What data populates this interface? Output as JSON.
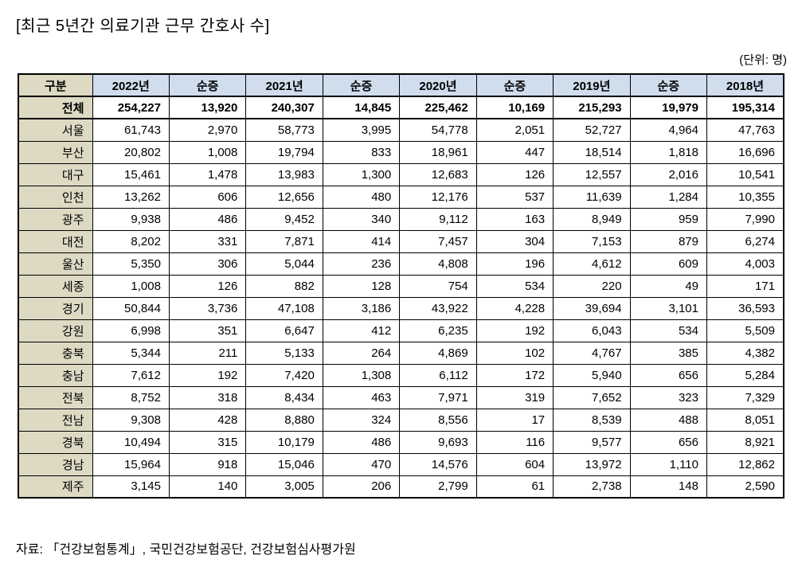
{
  "page": {
    "title": "[최근 5년간 의료기관 근무 간호사 수]",
    "unit_note": "(단위: 명)",
    "source": "자료: 「건강보험통계」, 국민건강보험공단, 건강보험심사평가원"
  },
  "colors": {
    "label_column_bg": "#DDD9C3",
    "year_header_bg": "#CFDDED",
    "border": "#000000"
  },
  "table": {
    "headers": [
      "구분",
      "2022년",
      "순증",
      "2021년",
      "순증",
      "2020년",
      "순증",
      "2019년",
      "순증",
      "2018년"
    ],
    "total_row": {
      "label": "전체",
      "values": [
        "254,227",
        "13,920",
        "240,307",
        "14,845",
        "225,462",
        "10,169",
        "215,293",
        "19,979",
        "195,314"
      ]
    },
    "rows": [
      {
        "label": "서울",
        "values": [
          "61,743",
          "2,970",
          "58,773",
          "3,995",
          "54,778",
          "2,051",
          "52,727",
          "4,964",
          "47,763"
        ]
      },
      {
        "label": "부산",
        "values": [
          "20,802",
          "1,008",
          "19,794",
          "833",
          "18,961",
          "447",
          "18,514",
          "1,818",
          "16,696"
        ]
      },
      {
        "label": "대구",
        "values": [
          "15,461",
          "1,478",
          "13,983",
          "1,300",
          "12,683",
          "126",
          "12,557",
          "2,016",
          "10,541"
        ]
      },
      {
        "label": "인천",
        "values": [
          "13,262",
          "606",
          "12,656",
          "480",
          "12,176",
          "537",
          "11,639",
          "1,284",
          "10,355"
        ]
      },
      {
        "label": "광주",
        "values": [
          "9,938",
          "486",
          "9,452",
          "340",
          "9,112",
          "163",
          "8,949",
          "959",
          "7,990"
        ]
      },
      {
        "label": "대전",
        "values": [
          "8,202",
          "331",
          "7,871",
          "414",
          "7,457",
          "304",
          "7,153",
          "879",
          "6,274"
        ]
      },
      {
        "label": "울산",
        "values": [
          "5,350",
          "306",
          "5,044",
          "236",
          "4,808",
          "196",
          "4,612",
          "609",
          "4,003"
        ]
      },
      {
        "label": "세종",
        "values": [
          "1,008",
          "126",
          "882",
          "128",
          "754",
          "534",
          "220",
          "49",
          "171"
        ]
      },
      {
        "label": "경기",
        "values": [
          "50,844",
          "3,736",
          "47,108",
          "3,186",
          "43,922",
          "4,228",
          "39,694",
          "3,101",
          "36,593"
        ]
      },
      {
        "label": "강원",
        "values": [
          "6,998",
          "351",
          "6,647",
          "412",
          "6,235",
          "192",
          "6,043",
          "534",
          "5,509"
        ]
      },
      {
        "label": "충북",
        "values": [
          "5,344",
          "211",
          "5,133",
          "264",
          "4,869",
          "102",
          "4,767",
          "385",
          "4,382"
        ]
      },
      {
        "label": "충남",
        "values": [
          "7,612",
          "192",
          "7,420",
          "1,308",
          "6,112",
          "172",
          "5,940",
          "656",
          "5,284"
        ]
      },
      {
        "label": "전북",
        "values": [
          "8,752",
          "318",
          "8,434",
          "463",
          "7,971",
          "319",
          "7,652",
          "323",
          "7,329"
        ]
      },
      {
        "label": "전남",
        "values": [
          "9,308",
          "428",
          "8,880",
          "324",
          "8,556",
          "17",
          "8,539",
          "488",
          "8,051"
        ]
      },
      {
        "label": "경북",
        "values": [
          "10,494",
          "315",
          "10,179",
          "486",
          "9,693",
          "116",
          "9,577",
          "656",
          "8,921"
        ]
      },
      {
        "label": "경남",
        "values": [
          "15,964",
          "918",
          "15,046",
          "470",
          "14,576",
          "604",
          "13,972",
          "1,110",
          "12,862"
        ]
      },
      {
        "label": "제주",
        "values": [
          "3,145",
          "140",
          "3,005",
          "206",
          "2,799",
          "61",
          "2,738",
          "148",
          "2,590"
        ]
      }
    ]
  }
}
